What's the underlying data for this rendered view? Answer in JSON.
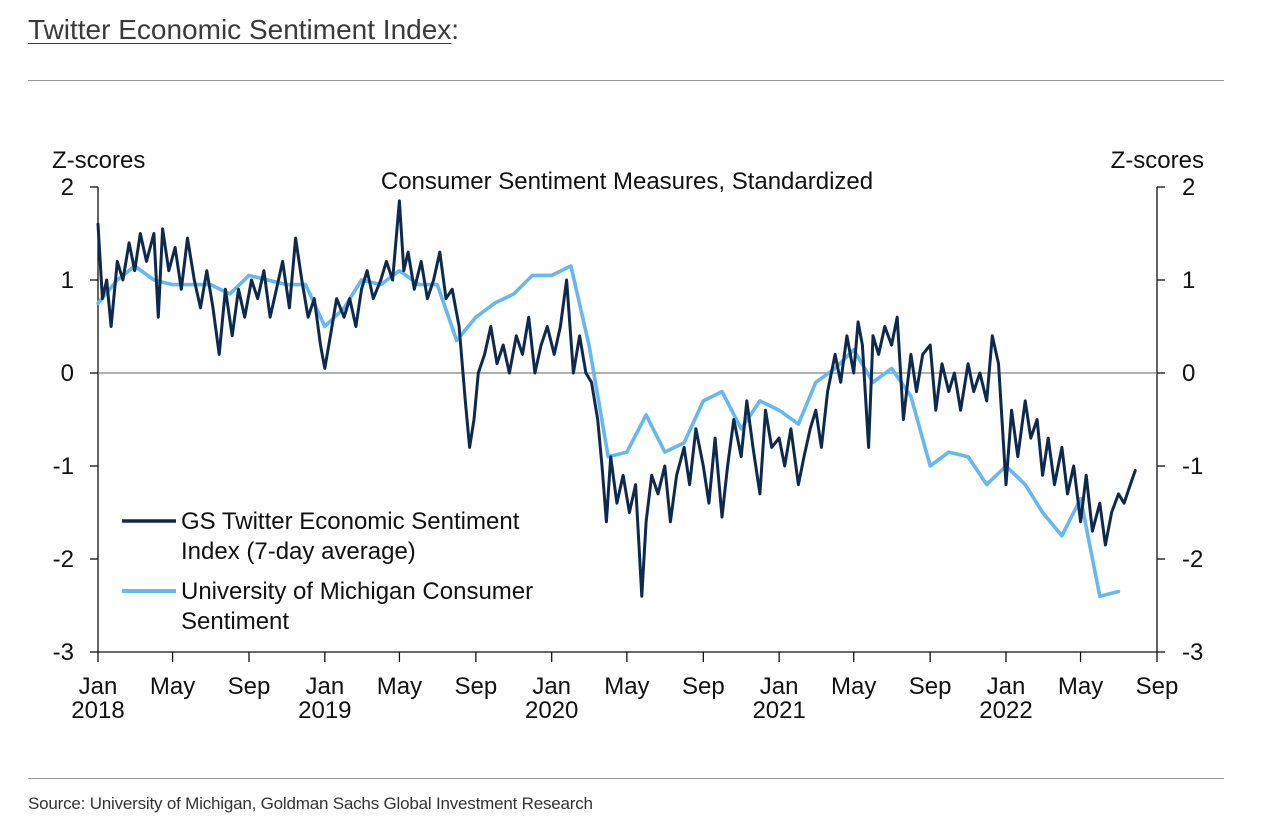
{
  "header": {
    "title": "Twitter Economic Sentiment Index",
    "title_suffix": ":"
  },
  "footer": {
    "source": "Source: University of Michigan, Goldman Sachs Global Investment Research"
  },
  "colors": {
    "twitter": "#0d2a4e",
    "michigan": "#66b8ee",
    "zero_line": "#808080",
    "axis": "#111111"
  },
  "chart_data": {
    "type": "line",
    "title": "Consumer Sentiment Measures, Standardized",
    "ylabel_left": "Z-scores",
    "ylabel_right": "Z-scores",
    "ylim": [
      -3,
      2
    ],
    "yticks": [
      2,
      1,
      0,
      -1,
      -2,
      -3
    ],
    "ytick_labels": [
      "2",
      "1",
      "0",
      "-1",
      "-2",
      "-3"
    ],
    "xlim": [
      "2018-01-01",
      "2022-09-01"
    ],
    "xticks": [
      {
        "date": "2018-01-01",
        "month": "Jan",
        "year": "2018"
      },
      {
        "date": "2018-05-01",
        "month": "May",
        "year": ""
      },
      {
        "date": "2018-09-01",
        "month": "Sep",
        "year": ""
      },
      {
        "date": "2019-01-01",
        "month": "Jan",
        "year": "2019"
      },
      {
        "date": "2019-05-01",
        "month": "May",
        "year": ""
      },
      {
        "date": "2019-09-01",
        "month": "Sep",
        "year": ""
      },
      {
        "date": "2020-01-01",
        "month": "Jan",
        "year": "2020"
      },
      {
        "date": "2020-05-01",
        "month": "May",
        "year": ""
      },
      {
        "date": "2020-09-01",
        "month": "Sep",
        "year": ""
      },
      {
        "date": "2021-01-01",
        "month": "Jan",
        "year": "2021"
      },
      {
        "date": "2021-05-01",
        "month": "May",
        "year": ""
      },
      {
        "date": "2021-09-01",
        "month": "Sep",
        "year": ""
      },
      {
        "date": "2022-01-01",
        "month": "Jan",
        "year": "2022"
      },
      {
        "date": "2022-05-01",
        "month": "May",
        "year": ""
      },
      {
        "date": "2022-09-01",
        "month": "Sep",
        "year": ""
      }
    ],
    "legend_position": "bottom-left",
    "series": [
      {
        "name": "GS Twitter Economic Sentiment Index (7-day average)",
        "legend_lines": [
          "GS Twitter Economic Sentiment Index (7-day average)"
        ],
        "color": "#0d2a4e",
        "points": [
          [
            "2018-01-01",
            1.6
          ],
          [
            "2018-01-08",
            0.8
          ],
          [
            "2018-01-15",
            1.0
          ],
          [
            "2018-01-22",
            0.5
          ],
          [
            "2018-02-01",
            1.2
          ],
          [
            "2018-02-10",
            1.0
          ],
          [
            "2018-02-20",
            1.4
          ],
          [
            "2018-03-01",
            1.1
          ],
          [
            "2018-03-10",
            1.5
          ],
          [
            "2018-03-20",
            1.2
          ],
          [
            "2018-04-01",
            1.5
          ],
          [
            "2018-04-08",
            0.6
          ],
          [
            "2018-04-15",
            1.55
          ],
          [
            "2018-04-25",
            1.1
          ],
          [
            "2018-05-05",
            1.35
          ],
          [
            "2018-05-15",
            0.9
          ],
          [
            "2018-05-25",
            1.45
          ],
          [
            "2018-06-05",
            1.0
          ],
          [
            "2018-06-15",
            0.7
          ],
          [
            "2018-06-25",
            1.1
          ],
          [
            "2018-07-05",
            0.7
          ],
          [
            "2018-07-15",
            0.2
          ],
          [
            "2018-07-25",
            0.9
          ],
          [
            "2018-08-05",
            0.4
          ],
          [
            "2018-08-15",
            0.9
          ],
          [
            "2018-08-25",
            0.6
          ],
          [
            "2018-09-05",
            1.0
          ],
          [
            "2018-09-15",
            0.8
          ],
          [
            "2018-09-25",
            1.1
          ],
          [
            "2018-10-05",
            0.6
          ],
          [
            "2018-10-15",
            0.9
          ],
          [
            "2018-10-25",
            1.2
          ],
          [
            "2018-11-05",
            0.7
          ],
          [
            "2018-11-15",
            1.45
          ],
          [
            "2018-11-25",
            1.0
          ],
          [
            "2018-12-05",
            0.6
          ],
          [
            "2018-12-15",
            0.8
          ],
          [
            "2018-12-25",
            0.3
          ],
          [
            "2019-01-01",
            0.05
          ],
          [
            "2019-01-10",
            0.4
          ],
          [
            "2019-01-20",
            0.8
          ],
          [
            "2019-02-01",
            0.6
          ],
          [
            "2019-02-10",
            0.8
          ],
          [
            "2019-02-20",
            0.5
          ],
          [
            "2019-03-01",
            0.9
          ],
          [
            "2019-03-10",
            1.1
          ],
          [
            "2019-03-20",
            0.8
          ],
          [
            "2019-04-01",
            1.0
          ],
          [
            "2019-04-10",
            1.2
          ],
          [
            "2019-04-20",
            1.0
          ],
          [
            "2019-05-01",
            1.85
          ],
          [
            "2019-05-08",
            1.1
          ],
          [
            "2019-05-15",
            1.3
          ],
          [
            "2019-05-25",
            0.9
          ],
          [
            "2019-06-05",
            1.2
          ],
          [
            "2019-06-15",
            0.8
          ],
          [
            "2019-06-25",
            1.0
          ],
          [
            "2019-07-05",
            1.3
          ],
          [
            "2019-07-15",
            0.8
          ],
          [
            "2019-07-25",
            0.9
          ],
          [
            "2019-08-05",
            0.5
          ],
          [
            "2019-08-15",
            -0.3
          ],
          [
            "2019-08-22",
            -0.8
          ],
          [
            "2019-08-29",
            -0.5
          ],
          [
            "2019-09-05",
            0.0
          ],
          [
            "2019-09-15",
            0.2
          ],
          [
            "2019-09-25",
            0.5
          ],
          [
            "2019-10-05",
            0.1
          ],
          [
            "2019-10-15",
            0.3
          ],
          [
            "2019-10-25",
            0.0
          ],
          [
            "2019-11-05",
            0.4
          ],
          [
            "2019-11-15",
            0.2
          ],
          [
            "2019-11-25",
            0.6
          ],
          [
            "2019-12-05",
            0.0
          ],
          [
            "2019-12-15",
            0.3
          ],
          [
            "2019-12-25",
            0.5
          ],
          [
            "2020-01-05",
            0.2
          ],
          [
            "2020-01-15",
            0.5
          ],
          [
            "2020-01-25",
            1.0
          ],
          [
            "2020-02-05",
            0.0
          ],
          [
            "2020-02-15",
            0.4
          ],
          [
            "2020-02-25",
            0.0
          ],
          [
            "2020-03-05",
            -0.1
          ],
          [
            "2020-03-15",
            -0.5
          ],
          [
            "2020-03-22",
            -1.0
          ],
          [
            "2020-03-29",
            -1.6
          ],
          [
            "2020-04-05",
            -0.9
          ],
          [
            "2020-04-15",
            -1.4
          ],
          [
            "2020-04-25",
            -1.1
          ],
          [
            "2020-05-05",
            -1.5
          ],
          [
            "2020-05-15",
            -1.2
          ],
          [
            "2020-05-25",
            -2.4
          ],
          [
            "2020-06-01",
            -1.6
          ],
          [
            "2020-06-10",
            -1.1
          ],
          [
            "2020-06-20",
            -1.3
          ],
          [
            "2020-07-01",
            -1.0
          ],
          [
            "2020-07-10",
            -1.6
          ],
          [
            "2020-07-20",
            -1.1
          ],
          [
            "2020-08-01",
            -0.8
          ],
          [
            "2020-08-10",
            -1.2
          ],
          [
            "2020-08-20",
            -0.6
          ],
          [
            "2020-09-01",
            -1.0
          ],
          [
            "2020-09-10",
            -1.4
          ],
          [
            "2020-09-20",
            -0.7
          ],
          [
            "2020-10-01",
            -1.55
          ],
          [
            "2020-10-10",
            -1.0
          ],
          [
            "2020-10-20",
            -0.5
          ],
          [
            "2020-11-01",
            -0.9
          ],
          [
            "2020-11-10",
            -0.3
          ],
          [
            "2020-11-20",
            -0.8
          ],
          [
            "2020-12-01",
            -1.3
          ],
          [
            "2020-12-10",
            -0.4
          ],
          [
            "2020-12-20",
            -0.8
          ],
          [
            "2021-01-01",
            -0.7
          ],
          [
            "2021-01-10",
            -1.0
          ],
          [
            "2021-01-20",
            -0.6
          ],
          [
            "2021-02-01",
            -1.2
          ],
          [
            "2021-02-10",
            -0.9
          ],
          [
            "2021-02-20",
            -0.6
          ],
          [
            "2021-03-01",
            -0.4
          ],
          [
            "2021-03-10",
            -0.8
          ],
          [
            "2021-03-20",
            -0.2
          ],
          [
            "2021-04-01",
            0.2
          ],
          [
            "2021-04-10",
            -0.1
          ],
          [
            "2021-04-20",
            0.4
          ],
          [
            "2021-05-01",
            0.0
          ],
          [
            "2021-05-08",
            0.55
          ],
          [
            "2021-05-15",
            0.3
          ],
          [
            "2021-05-25",
            -0.8
          ],
          [
            "2021-06-01",
            0.4
          ],
          [
            "2021-06-10",
            0.2
          ],
          [
            "2021-06-20",
            0.5
          ],
          [
            "2021-07-01",
            0.3
          ],
          [
            "2021-07-10",
            0.6
          ],
          [
            "2021-07-20",
            -0.5
          ],
          [
            "2021-08-01",
            0.2
          ],
          [
            "2021-08-10",
            -0.2
          ],
          [
            "2021-08-20",
            0.2
          ],
          [
            "2021-09-01",
            0.3
          ],
          [
            "2021-09-10",
            -0.4
          ],
          [
            "2021-09-20",
            0.1
          ],
          [
            "2021-10-01",
            -0.2
          ],
          [
            "2021-10-10",
            0.0
          ],
          [
            "2021-10-20",
            -0.4
          ],
          [
            "2021-11-01",
            0.1
          ],
          [
            "2021-11-10",
            -0.2
          ],
          [
            "2021-11-20",
            0.0
          ],
          [
            "2021-12-01",
            -0.3
          ],
          [
            "2021-12-10",
            0.4
          ],
          [
            "2021-12-20",
            0.1
          ],
          [
            "2022-01-01",
            -1.2
          ],
          [
            "2022-01-10",
            -0.4
          ],
          [
            "2022-01-20",
            -0.9
          ],
          [
            "2022-02-01",
            -0.3
          ],
          [
            "2022-02-10",
            -0.7
          ],
          [
            "2022-02-20",
            -0.5
          ],
          [
            "2022-03-01",
            -1.1
          ],
          [
            "2022-03-10",
            -0.7
          ],
          [
            "2022-03-20",
            -1.2
          ],
          [
            "2022-04-01",
            -0.8
          ],
          [
            "2022-04-10",
            -1.3
          ],
          [
            "2022-04-20",
            -1.0
          ],
          [
            "2022-05-01",
            -1.6
          ],
          [
            "2022-05-10",
            -1.1
          ],
          [
            "2022-05-20",
            -1.7
          ],
          [
            "2022-06-01",
            -1.4
          ],
          [
            "2022-06-10",
            -1.85
          ],
          [
            "2022-06-20",
            -1.5
          ],
          [
            "2022-07-01",
            -1.3
          ],
          [
            "2022-07-10",
            -1.4
          ],
          [
            "2022-07-20",
            -1.2
          ],
          [
            "2022-07-28",
            -1.05
          ]
        ]
      },
      {
        "name": "University of Michigan Consumer Sentiment",
        "legend_lines": [
          "University of Michigan Consumer Sentiment"
        ],
        "color": "#66b8ee",
        "points": [
          [
            "2018-01-01",
            0.75
          ],
          [
            "2018-02-01",
            1.0
          ],
          [
            "2018-03-01",
            1.15
          ],
          [
            "2018-04-01",
            1.0
          ],
          [
            "2018-05-01",
            0.95
          ],
          [
            "2018-06-01",
            0.95
          ],
          [
            "2018-07-01",
            0.95
          ],
          [
            "2018-08-01",
            0.85
          ],
          [
            "2018-09-01",
            1.05
          ],
          [
            "2018-10-01",
            1.0
          ],
          [
            "2018-11-01",
            0.95
          ],
          [
            "2018-12-01",
            0.95
          ],
          [
            "2019-01-01",
            0.5
          ],
          [
            "2019-02-01",
            0.7
          ],
          [
            "2019-03-01",
            1.0
          ],
          [
            "2019-04-01",
            0.95
          ],
          [
            "2019-05-01",
            1.1
          ],
          [
            "2019-06-01",
            0.95
          ],
          [
            "2019-07-01",
            0.95
          ],
          [
            "2019-08-01",
            0.35
          ],
          [
            "2019-09-01",
            0.6
          ],
          [
            "2019-10-01",
            0.75
          ],
          [
            "2019-11-01",
            0.85
          ],
          [
            "2019-12-01",
            1.05
          ],
          [
            "2020-01-01",
            1.05
          ],
          [
            "2020-02-01",
            1.15
          ],
          [
            "2020-03-01",
            0.3
          ],
          [
            "2020-04-01",
            -0.9
          ],
          [
            "2020-05-01",
            -0.85
          ],
          [
            "2020-06-01",
            -0.45
          ],
          [
            "2020-07-01",
            -0.85
          ],
          [
            "2020-08-01",
            -0.75
          ],
          [
            "2020-09-01",
            -0.3
          ],
          [
            "2020-10-01",
            -0.2
          ],
          [
            "2020-11-01",
            -0.6
          ],
          [
            "2020-12-01",
            -0.3
          ],
          [
            "2021-01-01",
            -0.4
          ],
          [
            "2021-02-01",
            -0.55
          ],
          [
            "2021-03-01",
            -0.1
          ],
          [
            "2021-04-01",
            0.05
          ],
          [
            "2021-05-01",
            0.25
          ],
          [
            "2021-06-01",
            -0.1
          ],
          [
            "2021-07-01",
            0.05
          ],
          [
            "2021-08-01",
            -0.25
          ],
          [
            "2021-09-01",
            -1.0
          ],
          [
            "2021-10-01",
            -0.85
          ],
          [
            "2021-11-01",
            -0.9
          ],
          [
            "2021-12-01",
            -1.2
          ],
          [
            "2022-01-01",
            -1.0
          ],
          [
            "2022-02-01",
            -1.2
          ],
          [
            "2022-03-01",
            -1.5
          ],
          [
            "2022-04-01",
            -1.75
          ],
          [
            "2022-05-01",
            -1.35
          ],
          [
            "2022-06-01",
            -2.4
          ],
          [
            "2022-07-01",
            -2.35
          ]
        ]
      }
    ]
  }
}
